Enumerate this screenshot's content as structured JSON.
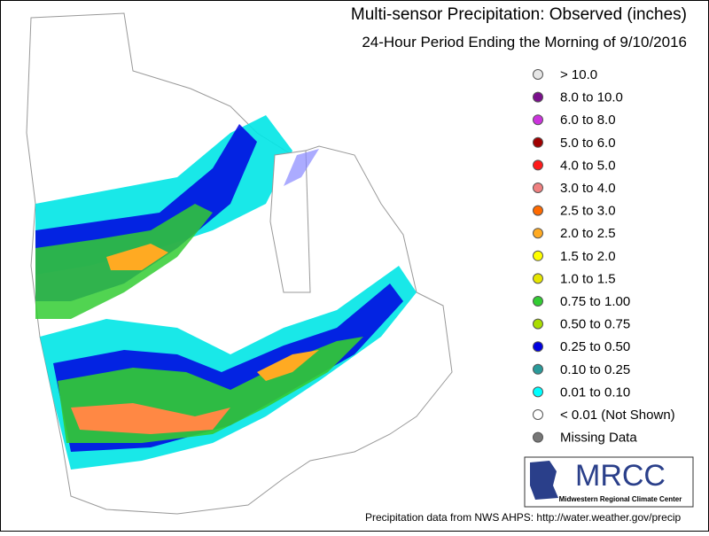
{
  "header": {
    "title": "Multi-sensor Precipitation:  Observed (inches)",
    "subtitle": "24-Hour Period Ending the Morning of 9/10/2016"
  },
  "legend": {
    "items": [
      {
        "label": "> 10.0",
        "color": "#e6e6e6"
      },
      {
        "label": "8.0 to 10.0",
        "color": "#7a0f8c"
      },
      {
        "label": "6.0 to 8.0",
        "color": "#cc33dd"
      },
      {
        "label": "5.0 to 6.0",
        "color": "#a00000"
      },
      {
        "label": "4.0 to 5.0",
        "color": "#ff1a1a"
      },
      {
        "label": "3.0 to 4.0",
        "color": "#f08080"
      },
      {
        "label": "2.5 to 3.0",
        "color": "#ff6a00"
      },
      {
        "label": "2.0 to 2.5",
        "color": "#ffaa22"
      },
      {
        "label": "1.5 to 2.0",
        "color": "#ffff00"
      },
      {
        "label": "1.0 to 1.5",
        "color": "#e6e600"
      },
      {
        "label": "0.75 to 1.00",
        "color": "#33cc33"
      },
      {
        "label": "0.50 to 0.75",
        "color": "#aadd00"
      },
      {
        "label": "0.25 to 0.50",
        "color": "#0000e0"
      },
      {
        "label": "0.10 to 0.25",
        "color": "#2a9a9a"
      },
      {
        "label": "0.01 to 0.10",
        "color": "#00ffff"
      },
      {
        "label": "< 0.01 (Not Shown)",
        "color": "#ffffff"
      },
      {
        "label": "Missing Data",
        "color": "#777777"
      }
    ]
  },
  "logo": {
    "name": "MRCC",
    "full_name": "Midwestern Regional Climate Center"
  },
  "footer": "Precipitation data from NWS AHPS: http://water.weather.gov/precip"
}
